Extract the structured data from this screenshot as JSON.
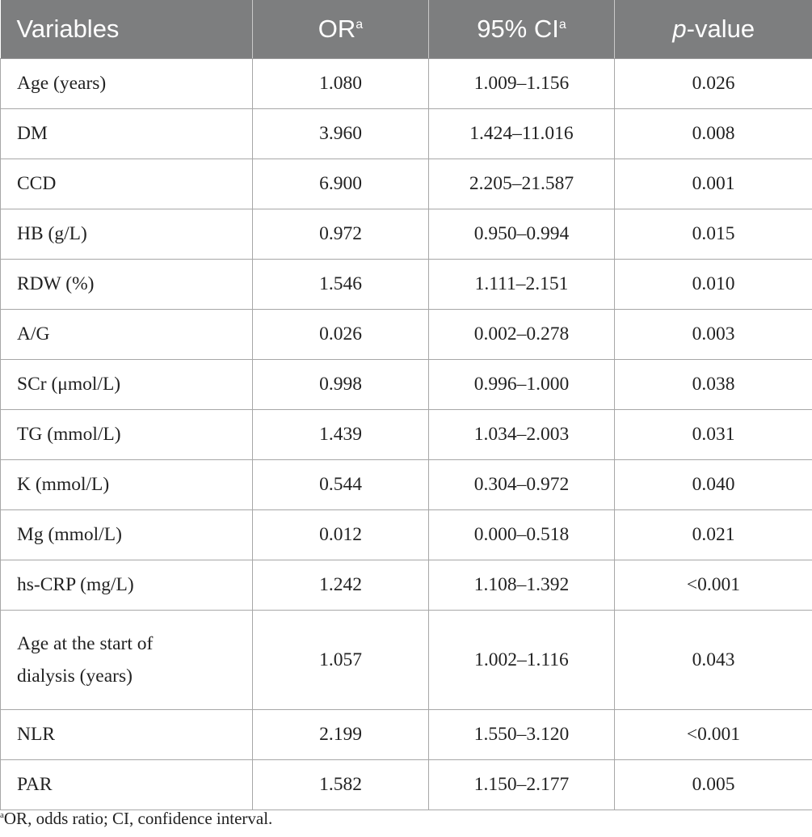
{
  "table": {
    "headers": {
      "variables": "Variables",
      "or": "OR",
      "or_sup": "a",
      "ci": "95% CI",
      "ci_sup": "a",
      "p_prefix": "p",
      "p_suffix": "-value"
    },
    "rows": [
      {
        "variable": "Age (years)",
        "or": "1.080",
        "ci": "1.009–1.156",
        "p": "0.026"
      },
      {
        "variable": "DM",
        "or": "3.960",
        "ci": "1.424–11.016",
        "p": "0.008"
      },
      {
        "variable": "CCD",
        "or": "6.900",
        "ci": "2.205–21.587",
        "p": "0.001"
      },
      {
        "variable": "HB (g/L)",
        "or": "0.972",
        "ci": "0.950–0.994",
        "p": "0.015"
      },
      {
        "variable": "RDW (%)",
        "or": "1.546",
        "ci": "1.111–2.151",
        "p": "0.010"
      },
      {
        "variable": "A/G",
        "or": "0.026",
        "ci": "0.002–0.278",
        "p": "0.003"
      },
      {
        "variable": "SCr (μmol/L)",
        "or": "0.998",
        "ci": "0.996–1.000",
        "p": "0.038"
      },
      {
        "variable": "TG (mmol/L)",
        "or": "1.439",
        "ci": "1.034–2.003",
        "p": "0.031"
      },
      {
        "variable": "K (mmol/L)",
        "or": "0.544",
        "ci": "0.304–0.972",
        "p": "0.040"
      },
      {
        "variable": "Mg (mmol/L)",
        "or": "0.012",
        "ci": "0.000–0.518",
        "p": "0.021"
      },
      {
        "variable": "hs-CRP (mg/L)",
        "or": "1.242",
        "ci": "1.108–1.392",
        "p": "<0.001"
      },
      {
        "variable_line1": "Age at the start of",
        "variable_line2": "dialysis (years)",
        "or": "1.057",
        "ci": "1.002–1.116",
        "p": "0.043"
      },
      {
        "variable": "NLR",
        "or": "2.199",
        "ci": "1.550–3.120",
        "p": "<0.001"
      },
      {
        "variable": "PAR",
        "or": "1.582",
        "ci": "1.150–2.177",
        "p": "0.005"
      }
    ]
  },
  "footnote": {
    "marker": "a",
    "text": "OR, odds ratio; CI, confidence interval."
  }
}
